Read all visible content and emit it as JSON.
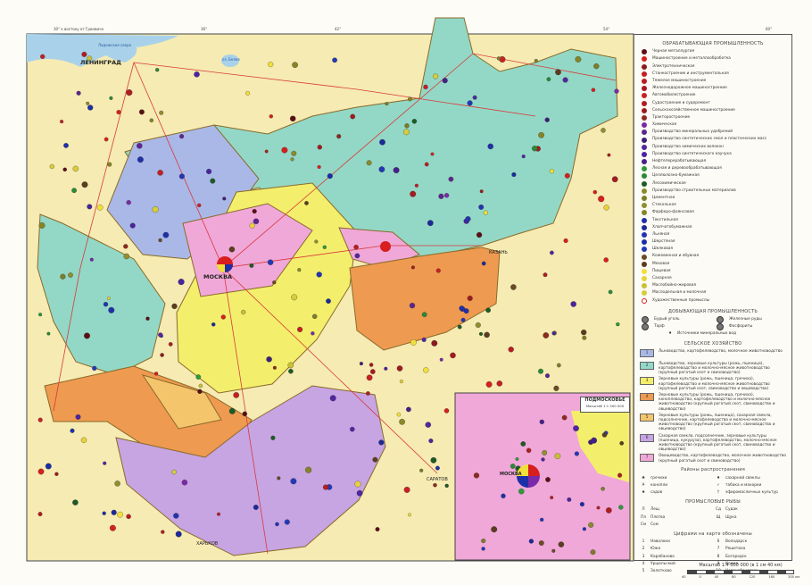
{
  "map": {
    "top_note": "30° к востоку от Гринвича",
    "meridians": [
      "30°",
      "36°",
      "42°",
      "48°",
      "54°",
      "60°"
    ],
    "cities": [
      {
        "name": "ЛЕНИНГРАД",
        "major": true
      },
      {
        "name": "МОСКВА",
        "major": true
      },
      {
        "name": "КАЗАНЬ",
        "major": false
      },
      {
        "name": "САРАТОВ",
        "major": false
      },
      {
        "name": "ХАРЬКОВ",
        "major": false
      },
      {
        "name": "Ладожское озеро",
        "major": false
      },
      {
        "name": "оз. Белое",
        "major": false
      }
    ]
  },
  "inset": {
    "title": "ПОДМОСКОВЬЕ",
    "scale": "Масштаб 1:1 500 000",
    "city": "МОСКВА"
  },
  "legend": {
    "manufacturing_title": "ОБРАБАТЫВАЮЩАЯ ПРОМЫШЛЕННОСТЬ",
    "manufacturing": [
      {
        "label": "Черная металлургия",
        "color": "#5a0f14"
      },
      {
        "label": "Машиностроение и металлообработка",
        "color": "#d81e1e"
      },
      {
        "label": "Электротехническая",
        "color": "#8a1a1e"
      },
      {
        "label": "Станкостроение и инструментальная",
        "color": "#c41f22"
      },
      {
        "label": "Тяжелое машиностроение",
        "color": "#b81c20"
      },
      {
        "label": "Железнодорожное машиностроение",
        "color": "#a51a1f"
      },
      {
        "label": "Автомобилестроение",
        "color": "#c92024"
      },
      {
        "label": "Судостроение и судоремонт",
        "color": "#b01d21"
      },
      {
        "label": "Сельскохозяйственное машиностроение",
        "color": "#9e1b1f"
      },
      {
        "label": "Тракторостроение",
        "color": "#8c2a1e"
      },
      {
        "label": "Химическая",
        "color": "#7a2aa8"
      },
      {
        "label": "Производство минеральных удобрений",
        "color": "#5d2590"
      },
      {
        "label": "Производство синтетических смол и пластических масс",
        "color": "#3f1e78"
      },
      {
        "label": "Производство химических волокон",
        "color": "#5126a0"
      },
      {
        "label": "Производство синтетического каучука",
        "color": "#4a24a0"
      },
      {
        "label": "Нефтеперерабатывающая",
        "color": "#45208a"
      },
      {
        "label": "Лесная и деревообрабатывающая",
        "color": "#2e9a3a"
      },
      {
        "label": "Целлюлозно-бумажная",
        "color": "#2b8a35"
      },
      {
        "label": "Лесохимическая",
        "color": "#1e5a24"
      },
      {
        "label": "Производство строительных материалов",
        "color": "#8a8a2a"
      },
      {
        "label": "Цементная",
        "color": "#7d7d28"
      },
      {
        "label": "Стекольная",
        "color": "#8f8f30"
      },
      {
        "label": "Фарфоро-фаянсовая",
        "color": "#858525"
      },
      {
        "label": "Текстильная",
        "color": "#1f2fa8"
      },
      {
        "label": "Хлопчатобумажная",
        "color": "#1c2a98"
      },
      {
        "label": "Льняная",
        "color": "#2234b0"
      },
      {
        "label": "Шерстяная",
        "color": "#1a2ca8"
      },
      {
        "label": "Шелковая",
        "color": "#2338b8"
      },
      {
        "label": "Кожевенная и обувная",
        "color": "#6b4a25"
      },
      {
        "label": "Меховая",
        "color": "#5a3c1e"
      },
      {
        "label": "Пищевая",
        "color": "#f2e03a"
      },
      {
        "label": "Сахарная",
        "color": "#e8d23a"
      },
      {
        "label": "Маслобойно-жировая",
        "color": "#c9c035"
      },
      {
        "label": "Маслодельная и молочная",
        "color": "#d8cc3a"
      },
      {
        "label": "Художественные промыслы",
        "color": "#ffffff"
      }
    ],
    "mining_title": "ДОБЫВАЮЩАЯ ПРОМЫШЛЕННОСТЬ",
    "mining": [
      {
        "label": "Бурый уголь"
      },
      {
        "label": "Железные руды"
      },
      {
        "label": "Торф"
      },
      {
        "label": "Фосфориты"
      }
    ],
    "mineral_water": "Источники минеральных вод",
    "agriculture_title": "СЕЛЬСКОЕ ХОЗЯЙСТВО",
    "agriculture": [
      {
        "num": "1",
        "color": "#a9b8e6",
        "label": "Льноводство, картофелеводство, молочное животноводство"
      },
      {
        "num": "2",
        "color": "#93d8c6",
        "label": "Льноводство, зерновые культуры (рожь, пшеница), картофелеводство и молочно-мясное животноводство (крупный рогатый скот и свиноводство)"
      },
      {
        "num": "3",
        "color": "#f3ef6c",
        "label": "Зерновые культуры (рожь, пшеница, гречиха), картофелеводство и молочно-мясное животноводство (крупный рогатый скот, свиноводство и овцеводство)"
      },
      {
        "num": "4",
        "color": "#ee9a50",
        "label": "Зерновые культуры (рожь, пшеница, гречиха), коноплеводство, картофелеводство и молочно-мясное животноводство (крупный рогатый скот, свиноводство и овцеводство)"
      },
      {
        "num": "5",
        "color": "#f5c56c",
        "label": "Зерновые культуры (рожь, пшеница), сахарная свекла, подсолнечник, картофелеводство и молочно-мясное животноводство (крупный рогатый скот, свиноводство и овцеводство)"
      },
      {
        "num": "6",
        "color": "#c7a4e2",
        "label": "Сахарная свекла, подсолнечник, зерновые культуры (пшеница, кукуруза), картофелеводство, молочно-мясное животноводство (крупный рогатый скот, свиноводство и овцеводство)"
      },
      {
        "num": "7",
        "color": "#f0a8d8",
        "label": "Овощеводство, картофелеводство, молочное животноводство (крупный рогатый скот и свиноводство)"
      }
    ],
    "crops_title": "Районы распространения",
    "crops": [
      {
        "sym": "♣",
        "label": "гречихи"
      },
      {
        "sym": "♦",
        "label": "сахарной свеклы"
      },
      {
        "sym": "¥",
        "label": "конопли"
      },
      {
        "sym": "✓",
        "label": "табака и махорки"
      },
      {
        "sym": "♠",
        "label": "садов"
      },
      {
        "sym": "†",
        "label": "эфиромасличных культур"
      }
    ],
    "fish_title": "ПРОМЫСЛОВЫЕ РЫБЫ",
    "fish": [
      {
        "sym": "Л",
        "label": "Лещ"
      },
      {
        "sym": "Сд",
        "label": "Судак"
      },
      {
        "sym": "Пл",
        "label": "Плотва"
      },
      {
        "sym": "Щ",
        "label": "Щука"
      },
      {
        "sym": "См",
        "label": "Сом"
      }
    ],
    "numbers_title": "Цифрами на карте обозначены",
    "numbers": [
      {
        "num": "1",
        "label": "Наволоки"
      },
      {
        "num": "6",
        "label": "Володарск"
      },
      {
        "num": "2",
        "label": "Южа"
      },
      {
        "num": "7",
        "label": "Решетиха"
      },
      {
        "num": "3",
        "label": "Карабаново"
      },
      {
        "num": "8",
        "label": "Богородск"
      },
      {
        "num": "4",
        "label": "Уршельский"
      },
      {
        "num": "9",
        "label": "Кохма"
      },
      {
        "num": "5",
        "label": "Золотково"
      },
      {
        "num": "10",
        "label": "Новочебоксарск"
      }
    ]
  },
  "scale": {
    "label": "Масштаб 1:4 000 000 (в 1 см 40 км)",
    "ticks": [
      "40",
      "0",
      "40",
      "80",
      "120",
      "160",
      "200 км"
    ]
  }
}
